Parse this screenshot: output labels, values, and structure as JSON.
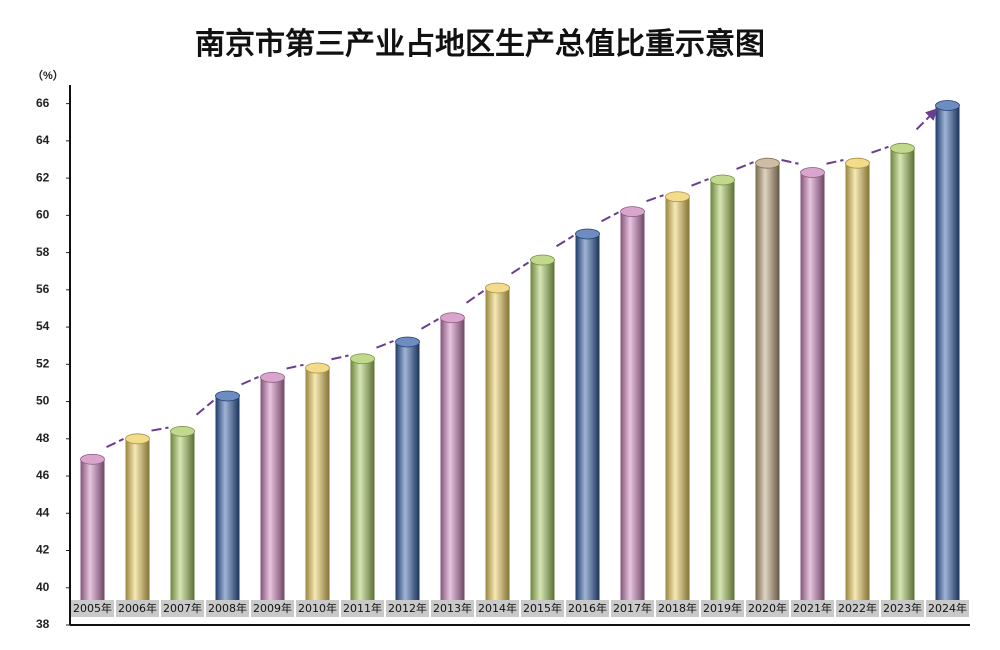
{
  "chart_data": {
    "type": "bar",
    "title": "南京市第三产业占地区生产总值比重示意图",
    "y_label": "（%）",
    "categories": [
      "2005年",
      "2006年",
      "2007年",
      "2008年",
      "2009年",
      "2010年",
      "2011年",
      "2012年",
      "2013年",
      "2014年",
      "2015年",
      "2016年",
      "2017年",
      "2018年",
      "2019年",
      "2020年",
      "2021年",
      "2022年",
      "2023年",
      "2024年"
    ],
    "values": [
      46.9,
      48.0,
      48.4,
      50.3,
      51.3,
      51.8,
      52.3,
      53.2,
      54.5,
      56.1,
      57.6,
      59.0,
      60.2,
      61.0,
      61.9,
      62.8,
      62.3,
      62.8,
      63.6,
      65.9
    ],
    "colors": [
      "#c97fb8",
      "#eccd5a",
      "#a6c95b",
      "#2f5aa4",
      "#c97fb8",
      "#eccd5a",
      "#a6c95b",
      "#2f5aa4",
      "#c97fb8",
      "#eccd5a",
      "#a6c95b",
      "#2f5aa4",
      "#c97fb8",
      "#eccd5a",
      "#a6c95b",
      "#b8a07a",
      "#c97fb8",
      "#eccd5a",
      "#a6c95b",
      "#2f5aa4"
    ],
    "ylim": [
      38,
      67
    ],
    "yticks": [
      38,
      40,
      42,
      44,
      46,
      48,
      50,
      52,
      54,
      56,
      58,
      60,
      62,
      64,
      66
    ]
  }
}
